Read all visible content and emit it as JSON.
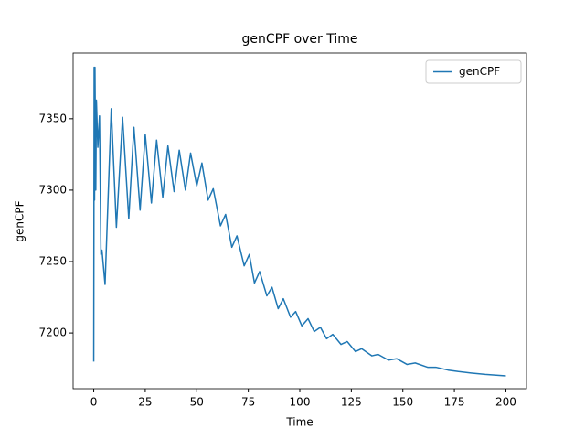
{
  "chart_data": {
    "type": "line",
    "title": "genCPF over Time",
    "xlabel": "Time",
    "ylabel": "genCPF",
    "x": [
      0,
      0.2,
      0.4,
      0.6,
      1.0,
      1.3,
      2,
      2.8,
      3.5,
      4,
      5.5,
      8.5,
      11,
      14,
      17,
      19.5,
      22.5,
      25,
      28,
      30.5,
      33.5,
      36,
      39,
      41.5,
      44.5,
      47,
      50,
      52.5,
      55.5,
      58,
      61.5,
      64,
      67,
      69.5,
      73,
      75.5,
      78,
      80.5,
      84,
      86.5,
      89.5,
      92,
      95.5,
      98,
      101,
      104,
      107,
      110,
      113,
      116,
      120,
      123,
      127,
      130,
      135,
      138,
      143,
      147,
      152,
      156,
      162,
      166,
      172,
      177,
      183,
      190,
      200
    ],
    "series": [
      {
        "name": "genCPF",
        "color": "#1f77b4",
        "values": [
          7180,
          7386,
          7293,
          7386,
          7300,
          7363,
          7330,
          7352,
          7255,
          7258,
          7234,
          7357,
          7274,
          7351,
          7280,
          7344,
          7286,
          7339,
          7291,
          7335,
          7295,
          7331,
          7299,
          7328,
          7300,
          7326,
          7303,
          7319,
          7293,
          7301,
          7275,
          7283,
          7260,
          7268,
          7247,
          7255,
          7235,
          7243,
          7226,
          7232,
          7217,
          7224,
          7211,
          7215,
          7205,
          7210,
          7201,
          7204,
          7196,
          7199,
          7192,
          7194,
          7187,
          7189,
          7184,
          7185,
          7181,
          7182,
          7178,
          7179,
          7176,
          7176,
          7174,
          7173,
          7172,
          7171,
          7170
        ]
      }
    ],
    "xlim": [
      -10,
      210
    ],
    "ylim": [
      7161,
      7396
    ],
    "xticks": [
      0,
      25,
      50,
      75,
      100,
      125,
      150,
      175,
      200
    ],
    "yticks": [
      7200,
      7250,
      7300,
      7350
    ],
    "legend": "upper right"
  }
}
